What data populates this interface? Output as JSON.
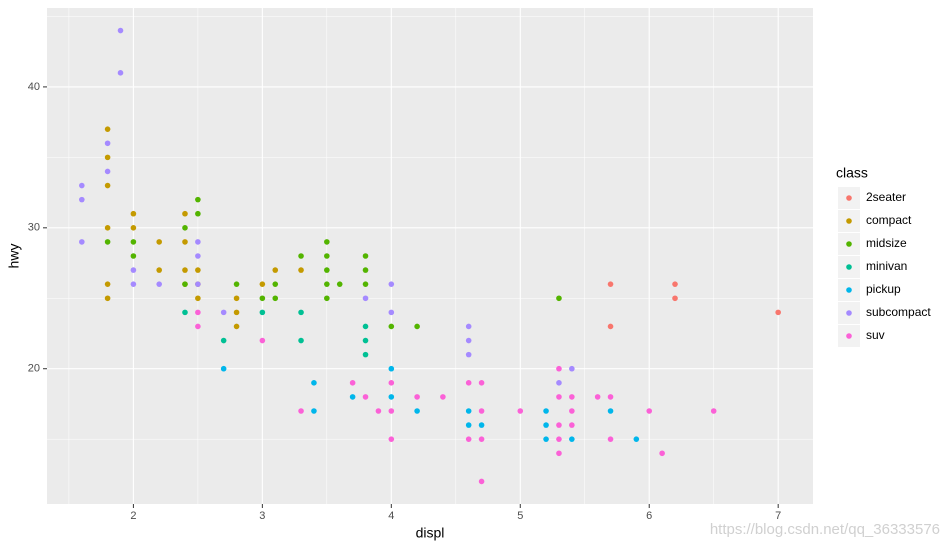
{
  "chart_data": {
    "type": "scatter",
    "x_label": "displ",
    "y_label": "hwy",
    "legend_title": "class",
    "xlim": [
      1.33,
      7.27
    ],
    "ylim": [
      10.4,
      45.6
    ],
    "xticks": [
      2,
      3,
      4,
      5,
      6,
      7
    ],
    "yticks": [
      20,
      30,
      40
    ],
    "xminor": [
      1.5,
      2.5,
      3.5,
      4.5,
      5.5,
      6.5
    ],
    "yminor": [
      15,
      25,
      35,
      45
    ],
    "grid": true,
    "legend": "right",
    "series": [
      {
        "name": "2seater",
        "color": "#F8766D",
        "x": [
          5.7,
          5.7,
          6.2,
          6.2,
          7.0
        ],
        "values": [
          26,
          23,
          26,
          25,
          24
        ]
      },
      {
        "name": "compact",
        "color": "#C49A00",
        "x": [
          1.8,
          1.8,
          1.8,
          1.8,
          1.8,
          1.8,
          2.0,
          2.0,
          2.2,
          2.2,
          2.4,
          2.4,
          2.4,
          2.4,
          2.5,
          2.5,
          2.5,
          2.8,
          2.8,
          2.8,
          3.0,
          3.1,
          3.3
        ],
        "values": [
          37,
          35,
          33,
          30,
          26,
          25,
          31,
          30,
          29,
          27,
          31,
          29,
          27,
          26,
          27,
          26,
          25,
          25,
          24,
          23,
          26,
          27,
          27
        ]
      },
      {
        "name": "midsize",
        "color": "#53B400",
        "x": [
          1.8,
          2.0,
          2.0,
          2.4,
          2.4,
          2.5,
          2.5,
          2.8,
          3.0,
          3.1,
          3.1,
          3.3,
          3.5,
          3.5,
          3.5,
          3.5,
          3.5,
          3.6,
          3.8,
          3.8,
          3.8,
          4.0,
          4.2,
          5.3
        ],
        "values": [
          29,
          29,
          28,
          30,
          26,
          32,
          31,
          26,
          25,
          26,
          25,
          28,
          29,
          28,
          27,
          26,
          25,
          26,
          28,
          27,
          26,
          23,
          23,
          25
        ]
      },
      {
        "name": "minivan",
        "color": "#00C094",
        "x": [
          2.4,
          2.7,
          3.0,
          3.3,
          3.3,
          3.8,
          3.8,
          3.8
        ],
        "values": [
          24,
          22,
          24,
          24,
          22,
          23,
          22,
          21
        ]
      },
      {
        "name": "pickup",
        "color": "#00B6EB",
        "x": [
          2.7,
          3.4,
          3.4,
          3.7,
          4.0,
          4.0,
          4.2,
          4.6,
          4.6,
          4.7,
          5.2,
          5.2,
          5.2,
          5.4,
          5.7,
          5.9
        ],
        "values": [
          20,
          19,
          17,
          18,
          20,
          18,
          17,
          17,
          16,
          16,
          17,
          16,
          15,
          15,
          17,
          15
        ]
      },
      {
        "name": "subcompact",
        "color": "#A58AFF",
        "x": [
          1.6,
          1.6,
          1.6,
          1.8,
          1.8,
          1.9,
          1.9,
          2.0,
          2.0,
          2.2,
          2.5,
          2.5,
          2.5,
          2.7,
          3.8,
          4.0,
          4.0,
          4.6,
          4.6,
          4.6,
          5.3,
          5.4
        ],
        "values": [
          33,
          32,
          29,
          36,
          34,
          44,
          41,
          27,
          26,
          26,
          29,
          28,
          26,
          24,
          25,
          26,
          24,
          23,
          22,
          21,
          19,
          20
        ]
      },
      {
        "name": "suv",
        "color": "#FB61D7",
        "x": [
          2.5,
          2.5,
          3.0,
          3.3,
          3.7,
          3.8,
          3.9,
          4.0,
          4.0,
          4.0,
          4.2,
          4.4,
          4.6,
          4.6,
          4.7,
          4.7,
          4.7,
          4.7,
          5.0,
          5.3,
          5.3,
          5.3,
          5.3,
          5.3,
          5.4,
          5.4,
          5.4,
          5.6,
          5.7,
          5.7,
          6.0,
          6.1,
          6.5
        ],
        "values": [
          24,
          23,
          22,
          17,
          19,
          18,
          17,
          19,
          17,
          15,
          18,
          18,
          19,
          15,
          19,
          17,
          15,
          12,
          17,
          20,
          18,
          16,
          15,
          14,
          18,
          17,
          16,
          18,
          18,
          15,
          17,
          14,
          17
        ]
      }
    ],
    "watermark": "https://blog.csdn.net/qq_36333576"
  }
}
